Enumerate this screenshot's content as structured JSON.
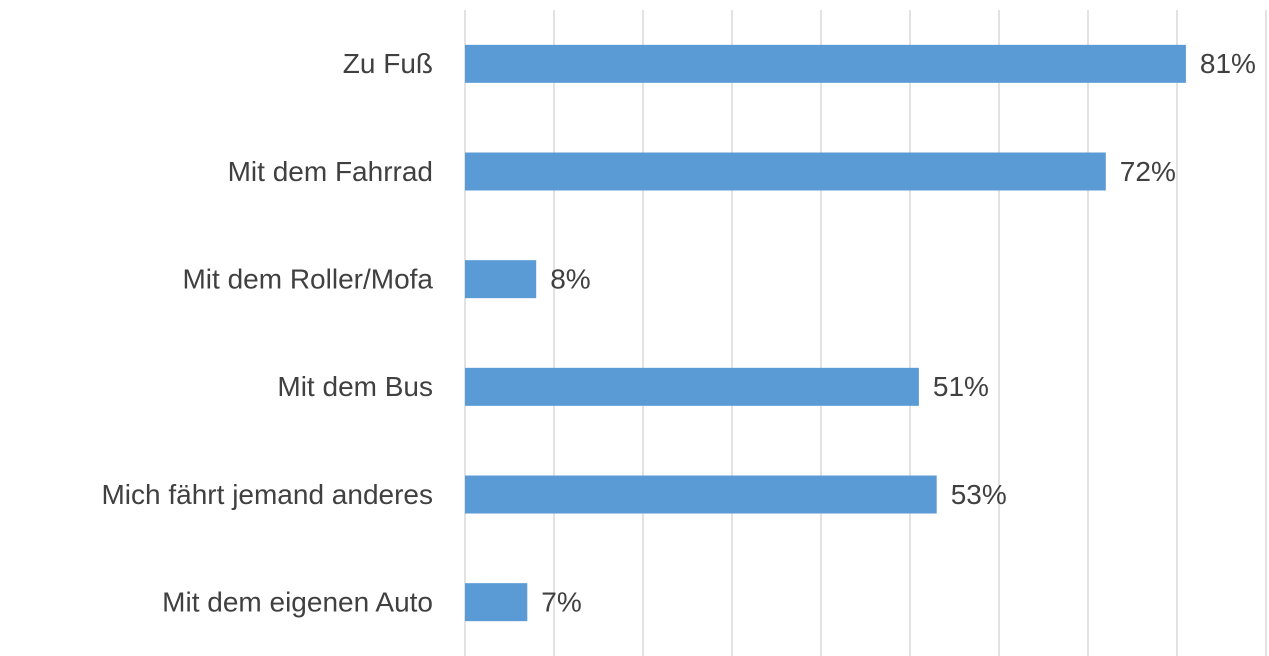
{
  "chart_data": {
    "type": "bar",
    "orientation": "horizontal",
    "categories": [
      "Zu Fuß",
      "Mit dem Fahrrad",
      "Mit dem Roller/Mofa",
      "Mit dem Bus",
      "Mich fährt jemand anderes",
      "Mit dem eigenen Auto"
    ],
    "values": [
      81,
      72,
      8,
      51,
      53,
      7
    ],
    "value_labels": [
      "81%",
      "72%",
      "8%",
      "51%",
      "53%",
      "7%"
    ],
    "color": "#5b9bd5",
    "xlim": [
      0,
      90
    ],
    "xticks": [
      0,
      10,
      20,
      30,
      40,
      50,
      60,
      70,
      80,
      90
    ],
    "grid": true
  }
}
